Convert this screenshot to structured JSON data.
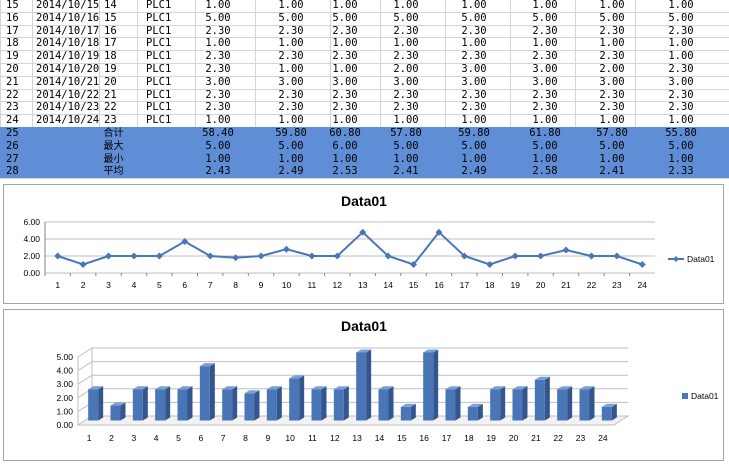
{
  "table": {
    "rows": [
      {
        "row": "15",
        "date": "2014/10/15",
        "idx": "14",
        "name": "PLC1",
        "vals": [
          "1.00",
          "1.00",
          "1.00",
          "1.00",
          "1.00",
          "1.00",
          "1.00",
          "1.00"
        ]
      },
      {
        "row": "16",
        "date": "2014/10/16",
        "idx": "15",
        "name": "PLC1",
        "vals": [
          "5.00",
          "5.00",
          "5.00",
          "5.00",
          "5.00",
          "5.00",
          "5.00",
          "5.00"
        ]
      },
      {
        "row": "17",
        "date": "2014/10/17",
        "idx": "16",
        "name": "PLC1",
        "vals": [
          "2.30",
          "2.30",
          "2.30",
          "2.30",
          "2.30",
          "2.30",
          "2.30",
          "2.30"
        ]
      },
      {
        "row": "18",
        "date": "2014/10/18",
        "idx": "17",
        "name": "PLC1",
        "vals": [
          "1.00",
          "1.00",
          "1.00",
          "1.00",
          "1.00",
          "1.00",
          "1.00",
          "1.00"
        ]
      },
      {
        "row": "19",
        "date": "2014/10/19",
        "idx": "18",
        "name": "PLC1",
        "vals": [
          "2.30",
          "2.30",
          "2.30",
          "2.30",
          "2.30",
          "2.30",
          "2.30",
          "1.00"
        ]
      },
      {
        "row": "20",
        "date": "2014/10/20",
        "idx": "19",
        "name": "PLC1",
        "vals": [
          "2.30",
          "1.00",
          "1.00",
          "2.00",
          "3.00",
          "3.00",
          "2.00",
          "2.30"
        ]
      },
      {
        "row": "21",
        "date": "2014/10/21",
        "idx": "20",
        "name": "PLC1",
        "vals": [
          "3.00",
          "3.00",
          "3.00",
          "3.00",
          "3.00",
          "3.00",
          "3.00",
          "3.00"
        ]
      },
      {
        "row": "22",
        "date": "2014/10/22",
        "idx": "21",
        "name": "PLC1",
        "vals": [
          "2.30",
          "2.30",
          "2.30",
          "2.30",
          "2.30",
          "2.30",
          "2.30",
          "2.30"
        ]
      },
      {
        "row": "23",
        "date": "2014/10/23",
        "idx": "22",
        "name": "PLC1",
        "vals": [
          "2.30",
          "2.30",
          "2.30",
          "2.30",
          "2.30",
          "2.30",
          "2.30",
          "2.30"
        ]
      },
      {
        "row": "24",
        "date": "2014/10/24",
        "idx": "23",
        "name": "PLC1",
        "vals": [
          "1.00",
          "1.00",
          "1.00",
          "1.00",
          "1.00",
          "1.00",
          "1.00",
          "1.00"
        ]
      }
    ],
    "summary": [
      {
        "row": "25",
        "label": "合计",
        "vals": [
          "58.40",
          "59.80",
          "60.80",
          "57.80",
          "59.80",
          "61.80",
          "57.80",
          "55.80"
        ]
      },
      {
        "row": "26",
        "label": "最大",
        "vals": [
          "5.00",
          "5.00",
          "6.00",
          "5.00",
          "5.00",
          "5.00",
          "5.00",
          "5.00"
        ]
      },
      {
        "row": "27",
        "label": "最小",
        "vals": [
          "1.00",
          "1.00",
          "1.00",
          "1.00",
          "1.00",
          "1.00",
          "1.00",
          "1.00"
        ]
      },
      {
        "row": "28",
        "label": "平均",
        "vals": [
          "2.43",
          "2.49",
          "2.53",
          "2.41",
          "2.49",
          "2.58",
          "2.41",
          "2.33"
        ]
      }
    ],
    "colors": {
      "summary_fill": "#5f8ed6",
      "grid": "#d4d4d4"
    }
  },
  "chart_data": [
    {
      "type": "line",
      "title": "Data01",
      "categories": [
        "1",
        "2",
        "3",
        "4",
        "5",
        "6",
        "7",
        "8",
        "9",
        "10",
        "11",
        "12",
        "13",
        "14",
        "15",
        "16",
        "17",
        "18",
        "19",
        "20",
        "21",
        "22",
        "23",
        "24"
      ],
      "series": [
        {
          "name": "Data01",
          "values": [
            2.0,
            1.0,
            2.0,
            2.0,
            2.0,
            3.7,
            2.0,
            1.8,
            2.0,
            2.8,
            2.0,
            2.0,
            4.8,
            2.0,
            1.0,
            4.8,
            2.0,
            1.0,
            2.0,
            2.0,
            2.7,
            2.0,
            2.0,
            1.0
          ]
        }
      ],
      "y_ticks": [
        "0.00",
        "2.00",
        "4.00",
        "6.00"
      ],
      "ylim": [
        0,
        6
      ],
      "legend": "right",
      "color": "#4a76b8"
    },
    {
      "type": "bar",
      "title": "Data01",
      "categories": [
        "1",
        "2",
        "3",
        "4",
        "5",
        "6",
        "7",
        "8",
        "9",
        "10",
        "11",
        "12",
        "13",
        "14",
        "15",
        "16",
        "17",
        "18",
        "19",
        "20",
        "21",
        "22",
        "23",
        "24"
      ],
      "series": [
        {
          "name": "Data01",
          "values": [
            2.3,
            1.1,
            2.3,
            2.3,
            2.3,
            4.0,
            2.3,
            2.0,
            2.3,
            3.1,
            2.3,
            2.3,
            5.0,
            2.3,
            1.0,
            5.0,
            2.3,
            1.0,
            2.3,
            2.3,
            3.0,
            2.3,
            2.3,
            1.0
          ]
        }
      ],
      "y_ticks": [
        "0.00",
        "1.00",
        "2.00",
        "3.00",
        "4.00",
        "5.00"
      ],
      "ylim": [
        0,
        5
      ],
      "legend": "right",
      "color": "#4a76b8"
    }
  ]
}
